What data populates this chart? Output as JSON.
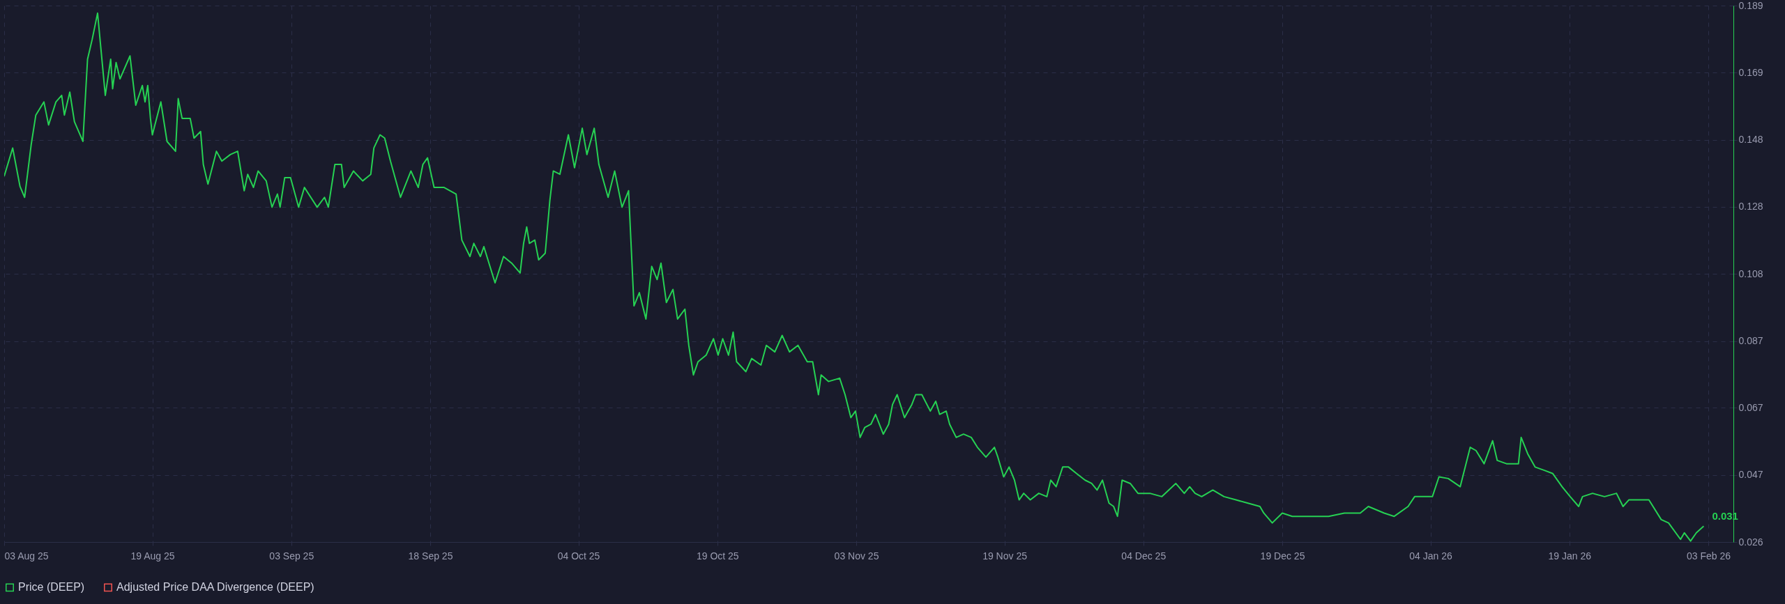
{
  "chart_data": {
    "type": "line",
    "legend": "bottom",
    "grid": true,
    "xlim": [
      "2025-08-03",
      "2026-02-05T17:00"
    ],
    "xticks": [
      {
        "value": "2025-08-03",
        "label": "03 Aug 25"
      },
      {
        "value": "2025-08-19",
        "label": "19 Aug 25"
      },
      {
        "value": "2025-09-03",
        "label": "03 Sep 25"
      },
      {
        "value": "2025-09-18",
        "label": "18 Sep 25"
      },
      {
        "value": "2025-10-04",
        "label": "04 Oct 25"
      },
      {
        "value": "2025-10-19",
        "label": "19 Oct 25"
      },
      {
        "value": "2025-11-03",
        "label": "03 Nov 25"
      },
      {
        "value": "2025-11-19",
        "label": "19 Nov 25"
      },
      {
        "value": "2025-12-04",
        "label": "04 Dec 25"
      },
      {
        "value": "2025-12-19",
        "label": "19 Dec 25"
      },
      {
        "value": "2026-01-04",
        "label": "04 Jan 26"
      },
      {
        "value": "2026-01-19",
        "label": "19 Jan 26"
      },
      {
        "value": "2026-02-03",
        "label": "03 Feb 26"
      }
    ],
    "ylim": [
      0.0262,
      0.1893
    ],
    "yticks": [
      {
        "value": 0.0262,
        "label": "0.026"
      },
      {
        "value": 0.0466,
        "label": "0.047"
      },
      {
        "value": 0.067,
        "label": "0.067"
      },
      {
        "value": 0.0873,
        "label": "0.087"
      },
      {
        "value": 0.1077,
        "label": "0.108"
      },
      {
        "value": 0.1281,
        "label": "0.128"
      },
      {
        "value": 0.1485,
        "label": "0.148"
      },
      {
        "value": 0.1689,
        "label": "0.169"
      },
      {
        "value": 0.1893,
        "label": "0.189"
      }
    ],
    "x": [
      "2025-08-03T00:00",
      "2025-08-03T22:00",
      "2025-08-04T17:00",
      "2025-08-05T05:00",
      "2025-08-05T22:00",
      "2025-08-06T10:00",
      "2025-08-07T07:00",
      "2025-08-07T19:00",
      "2025-08-08T14:00",
      "2025-08-09T05:00",
      "2025-08-09T12:00",
      "2025-08-10T02:00",
      "2025-08-10T14:00",
      "2025-08-11T12:00",
      "2025-08-12T00:00",
      "2025-08-12T12:00",
      "2025-08-13T02:00",
      "2025-08-13T22:00",
      "2025-08-14T12:00",
      "2025-08-14T17:00",
      "2025-08-15T02:00",
      "2025-08-15T12:00",
      "2025-08-16T14:00",
      "2025-08-17T05:00",
      "2025-08-17T22:00",
      "2025-08-18T05:00",
      "2025-08-18T12:00",
      "2025-08-18T19:00",
      "2025-08-19T00:00",
      "2025-08-19T22:00",
      "2025-08-20T14:00",
      "2025-08-21T12:00",
      "2025-08-21T19:00",
      "2025-08-22T05:00",
      "2025-08-23T02:00",
      "2025-08-23T12:00",
      "2025-08-24T05:00",
      "2025-08-24T12:00",
      "2025-08-25T00:00",
      "2025-08-25T22:00",
      "2025-08-26T12:00",
      "2025-08-27T10:00",
      "2025-08-28T05:00",
      "2025-08-28T22:00",
      "2025-08-29T07:00",
      "2025-08-29T22:00",
      "2025-08-30T10:00",
      "2025-08-31T07:00",
      "2025-08-31T22:00",
      "2025-09-01T12:00",
      "2025-09-01T19:00",
      "2025-09-02T07:00",
      "2025-09-02T22:00",
      "2025-09-03T19:00",
      "2025-09-04T10:00",
      "2025-09-05T19:00",
      "2025-09-06T14:00",
      "2025-09-07T00:00",
      "2025-09-07T17:00",
      "2025-09-08T10:00",
      "2025-09-08T17:00",
      "2025-09-09T17:00",
      "2025-09-10T17:00",
      "2025-09-11T14:00",
      "2025-09-11T22:00",
      "2025-09-12T14:00",
      "2025-09-13T02:00",
      "2025-09-13T17:00",
      "2025-09-14T19:00",
      "2025-09-15T22:00",
      "2025-09-16T17:00",
      "2025-09-17T05:00",
      "2025-09-17T17:00",
      "2025-09-18T10:00",
      "2025-09-19T12:00",
      "2025-09-20T19:00",
      "2025-09-21T10:00",
      "2025-09-22T07:00",
      "2025-09-22T17:00",
      "2025-09-23T10:00",
      "2025-09-23T19:00",
      "2025-09-25T00:00",
      "2025-09-25T22:00",
      "2025-09-26T19:00",
      "2025-09-27T17:00",
      "2025-09-28T02:00",
      "2025-09-28T10:00",
      "2025-09-28T17:00",
      "2025-09-29T07:00",
      "2025-09-29T17:00",
      "2025-09-30T10:00",
      "2025-09-30T22:00",
      "2025-10-01T07:00",
      "2025-10-02T00:00",
      "2025-10-02T22:00",
      "2025-10-03T14:00",
      "2025-10-04T10:00",
      "2025-10-04T22:00",
      "2025-10-05T17:00",
      "2025-10-06T05:00",
      "2025-10-07T05:00",
      "2025-10-07T22:00",
      "2025-10-08T17:00",
      "2025-10-09T10:00",
      "2025-10-10T00:00",
      "2025-10-10T14:00",
      "2025-10-11T07:00",
      "2025-10-11T22:00",
      "2025-10-12T12:00",
      "2025-10-12T22:00",
      "2025-10-13T12:00",
      "2025-10-14T05:00",
      "2025-10-14T17:00",
      "2025-10-15T12:00",
      "2025-10-15T22:00",
      "2025-10-16T10:00",
      "2025-10-16T22:00",
      "2025-10-17T19:00",
      "2025-10-18T14:00",
      "2025-10-19T02:00",
      "2025-10-19T14:00",
      "2025-10-20T05:00",
      "2025-10-20T17:00",
      "2025-10-21T02:00",
      "2025-10-22T02:00",
      "2025-10-22T17:00",
      "2025-10-23T17:00",
      "2025-10-24T07:00",
      "2025-10-25T05:00",
      "2025-10-26T00:00",
      "2025-10-26T19:00",
      "2025-10-27T17:00",
      "2025-10-28T17:00",
      "2025-10-29T07:00",
      "2025-10-29T22:00",
      "2025-10-30T05:00",
      "2025-10-31T00:00",
      "2025-11-01T05:00",
      "2025-11-01T19:00",
      "2025-11-02T10:00",
      "2025-11-02T22:00",
      "2025-11-03T10:00",
      "2025-11-03T22:00",
      "2025-11-04T14:00",
      "2025-11-05T02:00",
      "2025-11-05T22:00",
      "2025-11-06T12:00",
      "2025-11-06T22:00",
      "2025-11-07T10:00",
      "2025-11-08T05:00",
      "2025-11-09T00:00",
      "2025-11-09T10:00",
      "2025-11-10T02:00",
      "2025-11-11T00:00",
      "2025-11-11T14:00",
      "2025-11-12T00:00",
      "2025-11-12T17:00",
      "2025-11-13T02:00",
      "2025-11-13T19:00",
      "2025-11-14T14:00",
      "2025-11-15T10:00",
      "2025-11-16T02:00",
      "2025-11-17T00:00",
      "2025-11-17T22:00",
      "2025-11-18T07:00",
      "2025-11-18T22:00",
      "2025-11-19T12:00",
      "2025-11-20T02:00",
      "2025-11-20T14:00",
      "2025-11-21T02:00",
      "2025-11-21T19:00",
      "2025-11-22T17:00",
      "2025-11-23T14:00",
      "2025-11-24T00:00",
      "2025-11-24T14:00",
      "2025-11-25T07:00",
      "2025-11-25T22:00",
      "2025-11-26T19:00",
      "2025-11-27T17:00",
      "2025-11-28T10:00",
      "2025-11-29T00:00",
      "2025-11-29T14:00",
      "2025-11-30T07:00",
      "2025-11-30T19:00",
      "2025-12-01T05:00",
      "2025-12-01T17:00",
      "2025-12-02T14:00",
      "2025-12-03T10:00",
      "2025-12-04T17:00",
      "2025-12-06T00:00",
      "2025-12-07T12:00",
      "2025-12-08T10:00",
      "2025-12-09T00:00",
      "2025-12-09T14:00",
      "2025-12-10T07:00",
      "2025-12-11T12:00",
      "2025-12-12T17:00",
      "2025-12-14T00:00",
      "2025-12-15T07:00",
      "2025-12-16T14:00",
      "2025-12-17T00:00",
      "2025-12-17T22:00",
      "2025-12-19T00:00",
      "2025-12-20T02:00",
      "2025-12-20T22:00",
      "2025-12-22T05:00",
      "2025-12-24T00:00",
      "2025-12-25T17:00",
      "2025-12-27T10:00",
      "2025-12-28T07:00",
      "2025-12-30T00:00",
      "2025-12-31T02:00",
      "2026-01-01T14:00",
      "2026-01-02T07:00",
      "2026-01-03T07:00",
      "2026-01-04T05:00",
      "2026-01-04T22:00",
      "2026-01-05T22:00",
      "2026-01-07T05:00",
      "2026-01-08T07:00",
      "2026-01-08T22:00",
      "2026-01-09T19:00",
      "2026-01-10T17:00",
      "2026-01-11T05:00",
      "2026-01-12T05:00",
      "2026-01-13T12:00",
      "2026-01-13T19:00",
      "2026-01-14T12:00",
      "2026-01-15T07:00",
      "2026-01-16T07:00",
      "2026-01-17T05:00",
      "2026-01-18T05:00",
      "2026-01-19T02:00",
      "2026-01-20T00:00",
      "2026-01-20T10:00",
      "2026-01-21T12:00",
      "2026-01-22T19:00",
      "2026-01-24T02:00",
      "2026-01-24T19:00",
      "2026-01-25T10:00",
      "2026-01-26T17:00",
      "2026-01-27T14:00",
      "2026-01-28T22:00",
      "2026-01-29T17:00",
      "2026-01-31T00:00",
      "2026-01-31T10:00",
      "2026-02-01T02:00",
      "2026-02-01T17:00",
      "2026-02-02T12:00"
    ],
    "series": [
      {
        "name": "Price (DEEP)",
        "color": "#26d153",
        "values": [
          0.1374,
          0.146,
          0.1343,
          0.131,
          0.147,
          0.156,
          0.16,
          0.153,
          0.16,
          0.162,
          0.156,
          0.163,
          0.154,
          0.148,
          0.173,
          0.179,
          0.187,
          0.162,
          0.173,
          0.164,
          0.172,
          0.167,
          0.174,
          0.159,
          0.165,
          0.16,
          0.165,
          0.155,
          0.15,
          0.16,
          0.148,
          0.145,
          0.161,
          0.155,
          0.155,
          0.149,
          0.151,
          0.141,
          0.135,
          0.145,
          0.142,
          0.144,
          0.145,
          0.133,
          0.138,
          0.134,
          0.139,
          0.136,
          0.128,
          0.132,
          0.128,
          0.137,
          0.137,
          0.128,
          0.134,
          0.128,
          0.131,
          0.128,
          0.141,
          0.141,
          0.134,
          0.139,
          0.136,
          0.138,
          0.146,
          0.15,
          0.149,
          0.142,
          0.131,
          0.139,
          0.134,
          0.141,
          0.143,
          0.134,
          0.134,
          0.132,
          0.118,
          0.113,
          0.117,
          0.113,
          0.116,
          0.105,
          0.113,
          0.111,
          0.108,
          0.117,
          0.122,
          0.117,
          0.118,
          0.112,
          0.114,
          0.13,
          0.139,
          0.138,
          0.15,
          0.14,
          0.152,
          0.144,
          0.152,
          0.141,
          0.131,
          0.139,
          0.128,
          0.133,
          0.098,
          0.102,
          0.094,
          0.11,
          0.106,
          0.111,
          0.099,
          0.103,
          0.094,
          0.097,
          0.086,
          0.077,
          0.081,
          0.083,
          0.088,
          0.083,
          0.088,
          0.083,
          0.09,
          0.081,
          0.078,
          0.082,
          0.08,
          0.086,
          0.084,
          0.089,
          0.084,
          0.086,
          0.081,
          0.081,
          0.071,
          0.077,
          0.075,
          0.076,
          0.071,
          0.064,
          0.066,
          0.058,
          0.061,
          0.062,
          0.065,
          0.059,
          0.062,
          0.068,
          0.071,
          0.064,
          0.068,
          0.071,
          0.071,
          0.066,
          0.069,
          0.065,
          0.066,
          0.062,
          0.058,
          0.059,
          0.058,
          0.055,
          0.052,
          0.055,
          0.052,
          0.046,
          0.049,
          0.045,
          0.039,
          0.041,
          0.039,
          0.041,
          0.04,
          0.045,
          0.043,
          0.049,
          0.049,
          0.047,
          0.045,
          0.044,
          0.042,
          0.045,
          0.038,
          0.037,
          0.034,
          0.045,
          0.044,
          0.041,
          0.041,
          0.04,
          0.044,
          0.041,
          0.043,
          0.041,
          0.04,
          0.042,
          0.04,
          0.039,
          0.038,
          0.037,
          0.035,
          0.032,
          0.035,
          0.034,
          0.034,
          0.034,
          0.034,
          0.035,
          0.035,
          0.037,
          0.035,
          0.034,
          0.037,
          0.04,
          0.04,
          0.04,
          0.046,
          0.0455,
          0.043,
          0.055,
          0.054,
          0.05,
          0.057,
          0.051,
          0.05,
          0.05,
          0.058,
          0.053,
          0.049,
          0.048,
          0.047,
          0.043,
          0.04,
          0.037,
          0.04,
          0.041,
          0.04,
          0.041,
          0.037,
          0.039,
          0.039,
          0.039,
          0.033,
          0.032,
          0.027,
          0.029,
          0.0265,
          0.029,
          0.031
        ],
        "value_labels": [
          null,
          null,
          null,
          null,
          null,
          null,
          null,
          null,
          null,
          null,
          null,
          null,
          null,
          null,
          null,
          null,
          null,
          null,
          null,
          null,
          null,
          null,
          null,
          null,
          null,
          null,
          null,
          null,
          null,
          null,
          null,
          null,
          null,
          null,
          null,
          null,
          null,
          null,
          null,
          null,
          null,
          null,
          null,
          null,
          null,
          null,
          null,
          null,
          null,
          null,
          null,
          null,
          null,
          null,
          null,
          null,
          null,
          null,
          null,
          null,
          null,
          null,
          null,
          null,
          null,
          null,
          null,
          null,
          null,
          null,
          null,
          null,
          null,
          null,
          null,
          null,
          null,
          null,
          null,
          null,
          null,
          null,
          null,
          null,
          null,
          null,
          null,
          null,
          null,
          null,
          null,
          null,
          null,
          null,
          null,
          null,
          null,
          null,
          null,
          null,
          null,
          null,
          null,
          null,
          null,
          null,
          null,
          null,
          null,
          null,
          null,
          null,
          null,
          null,
          null,
          null,
          null,
          null,
          null,
          null,
          null,
          null,
          null,
          null,
          null,
          null,
          null,
          null,
          null,
          null,
          null,
          null,
          null,
          null,
          null,
          null,
          null,
          null,
          null,
          null,
          null,
          null,
          null,
          null,
          null,
          null,
          null,
          null,
          null,
          null,
          null,
          null,
          null,
          null,
          null,
          null,
          null,
          null,
          null,
          null,
          null,
          null,
          null,
          null,
          null,
          null,
          null,
          null,
          null,
          null,
          null,
          null,
          null,
          null,
          null,
          null,
          null,
          null,
          null,
          null,
          null,
          null,
          null,
          null,
          null,
          null,
          null,
          null,
          null,
          null,
          null,
          null,
          null,
          null,
          null,
          null,
          null,
          null,
          null,
          null,
          null,
          null,
          null,
          null,
          null,
          null,
          null,
          null,
          null,
          null,
          null,
          null,
          null,
          null,
          null,
          null,
          null,
          null,
          null,
          null,
          null,
          null,
          null,
          null,
          null,
          null,
          null,
          null,
          null,
          null,
          null,
          null,
          null,
          null,
          null,
          null,
          null,
          null,
          null,
          null,
          null,
          null,
          null,
          null,
          null,
          null,
          null,
          null,
          "0.031"
        ]
      },
      {
        "name": "Adjusted Price DAA Divergence (DEEP)",
        "color": "#ef5350",
        "values": [
          null,
          null,
          null,
          null,
          null,
          null,
          null,
          null,
          null,
          null,
          null,
          null,
          null,
          null,
          null,
          null,
          null,
          null,
          null,
          null,
          null,
          null,
          null,
          null,
          null,
          null,
          null,
          null,
          null,
          null,
          null,
          null,
          null,
          null,
          null,
          null,
          null,
          null,
          null,
          null,
          null,
          null,
          null,
          null,
          null,
          null,
          null,
          null,
          null,
          null,
          null,
          null,
          null,
          null,
          null,
          null,
          null,
          null,
          null,
          null,
          null,
          null,
          null,
          null,
          null,
          null,
          null,
          null,
          null,
          null,
          null,
          null,
          null,
          null,
          null,
          null,
          null,
          null,
          null,
          null,
          null,
          null,
          null,
          null,
          null,
          null,
          null,
          null,
          null,
          null,
          null,
          null,
          null,
          null,
          null,
          null,
          null,
          null,
          null,
          null,
          null,
          null,
          null,
          null,
          null,
          null,
          null,
          null,
          null,
          null,
          null,
          null,
          null,
          null,
          null,
          null,
          null,
          null,
          null,
          null,
          null,
          null,
          null,
          null,
          null,
          null,
          null,
          null,
          null,
          null,
          null,
          null,
          null,
          null,
          null,
          null,
          null,
          null,
          null,
          null,
          null,
          null,
          null,
          null,
          null,
          null,
          null,
          null,
          null,
          null,
          null,
          null,
          null,
          null,
          null,
          null,
          null,
          null,
          null,
          null,
          null,
          null,
          null,
          null,
          null,
          null,
          null,
          null,
          null,
          null,
          null,
          null,
          null,
          null,
          null,
          null,
          null,
          null,
          null,
          null,
          null,
          null,
          null,
          null,
          null,
          null,
          null,
          null,
          null,
          null,
          null,
          null,
          null,
          null,
          null,
          null,
          null,
          null,
          null,
          null,
          null,
          null,
          null,
          null,
          null,
          null,
          null,
          null,
          null,
          null,
          null,
          null,
          null,
          null,
          null,
          null,
          null,
          null,
          null,
          null,
          null,
          null,
          null,
          null,
          null,
          null,
          null,
          null,
          null,
          null,
          null,
          null,
          null,
          null,
          null,
          null,
          null,
          null,
          null,
          null,
          null,
          null,
          null,
          null,
          null,
          null,
          null,
          null,
          null
        ]
      }
    ]
  }
}
